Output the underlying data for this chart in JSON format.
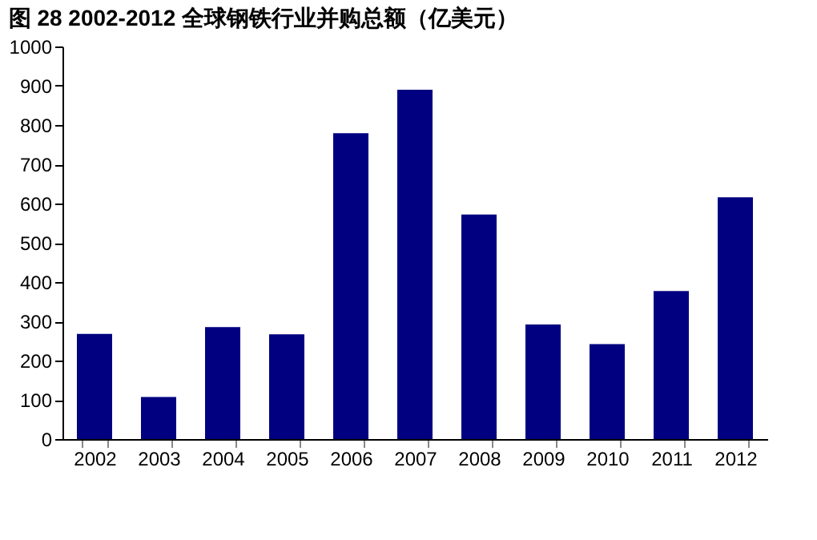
{
  "chart_data": {
    "type": "bar",
    "title": "图 28 2002-2012 全球钢铁行业并购总额（亿美元）",
    "categories": [
      "2002",
      "2003",
      "2004",
      "2005",
      "2006",
      "2007",
      "2008",
      "2009",
      "2010",
      "2011",
      "2012"
    ],
    "values": [
      268,
      107,
      285,
      267,
      779,
      890,
      572,
      292,
      242,
      377,
      616
    ],
    "color": "#000080",
    "ylim": [
      0,
      1000
    ],
    "yticks": [
      0,
      100,
      200,
      300,
      400,
      500,
      600,
      700,
      800,
      900,
      1000
    ],
    "grid": false
  }
}
